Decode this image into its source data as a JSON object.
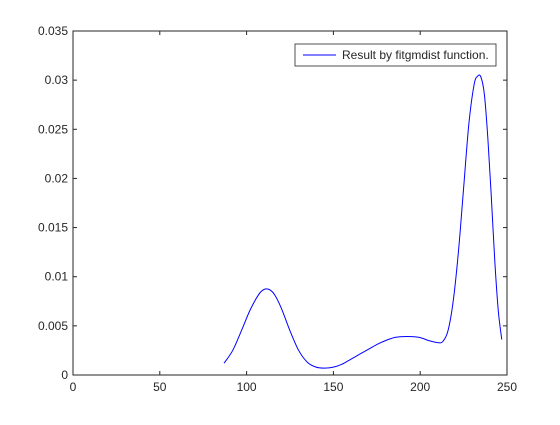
{
  "chart_data": {
    "type": "line",
    "title": "",
    "xlabel": "",
    "ylabel": "",
    "xlim": [
      0,
      250
    ],
    "ylim": [
      0,
      0.035
    ],
    "xticks": [
      0,
      50,
      100,
      150,
      200,
      250
    ],
    "yticks": [
      0,
      0.005,
      0.01,
      0.015,
      0.02,
      0.025,
      0.03,
      0.035
    ],
    "xtick_labels": [
      "0",
      "50",
      "100",
      "150",
      "200",
      "250"
    ],
    "ytick_labels": [
      "0",
      "0.005",
      "0.01",
      "0.015",
      "0.02",
      "0.025",
      "0.03",
      "0.035"
    ],
    "grid": false,
    "legend_position": "top-right",
    "series": [
      {
        "name": "Result by fitgmdist function.",
        "color": "#0000ff",
        "x": [
          87,
          92,
          97,
          102,
          107,
          110,
          113,
          116,
          120,
          125,
          130,
          135,
          140,
          145,
          150,
          155,
          160,
          165,
          170,
          175,
          180,
          185,
          190,
          195,
          200,
          205,
          210,
          213,
          216,
          219,
          222,
          225,
          228,
          231,
          233,
          235,
          237,
          239,
          241,
          243,
          245,
          247
        ],
        "y": [
          0.0012,
          0.0025,
          0.0045,
          0.0066,
          0.0082,
          0.0087,
          0.0087,
          0.0082,
          0.0068,
          0.0045,
          0.0025,
          0.0013,
          0.0008,
          0.0007,
          0.0008,
          0.0011,
          0.0016,
          0.0021,
          0.0026,
          0.0031,
          0.0035,
          0.0038,
          0.0039,
          0.0039,
          0.0038,
          0.0035,
          0.0033,
          0.0034,
          0.0045,
          0.0075,
          0.0125,
          0.019,
          0.0255,
          0.0295,
          0.0304,
          0.0303,
          0.0285,
          0.024,
          0.018,
          0.0115,
          0.0065,
          0.0036
        ]
      }
    ]
  }
}
